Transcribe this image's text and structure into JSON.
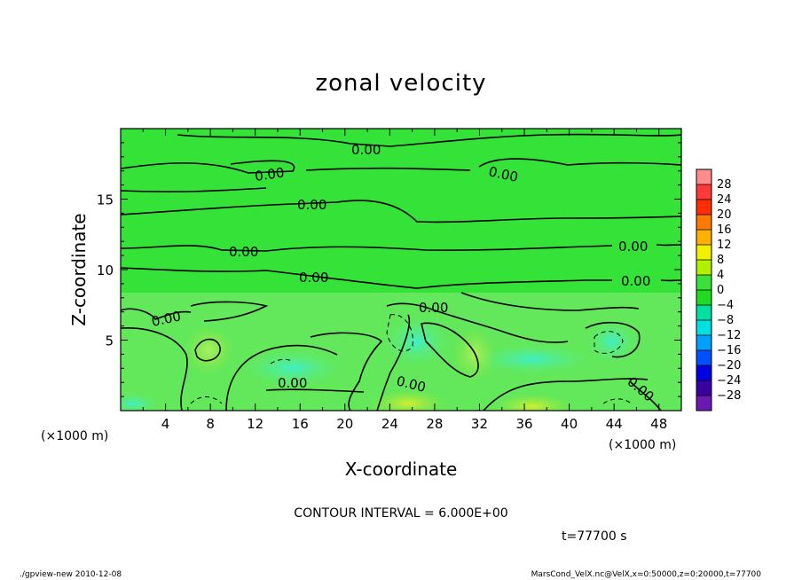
{
  "chart_data": {
    "type": "heatmap",
    "title": "zonal velocity",
    "xlabel": "X-coordinate",
    "ylabel": "Z-coordinate",
    "x_unit": "(×1000 m)",
    "y_unit": "(×1000 m)",
    "xlim": [
      0,
      50
    ],
    "ylim": [
      0,
      20
    ],
    "x_ticks": [
      4,
      8,
      12,
      16,
      20,
      24,
      28,
      32,
      36,
      40,
      44,
      48
    ],
    "y_ticks": [
      5,
      10,
      15
    ],
    "colorbar_levels": [
      28,
      24,
      20,
      16,
      12,
      8,
      4,
      0,
      -4,
      -8,
      -12,
      -16,
      -20,
      -24,
      -28
    ],
    "colorbar_colors": [
      "#ff8c8c",
      "#ff3a3a",
      "#ff2d00",
      "#ff7a00",
      "#ffb000",
      "#f0f000",
      "#b0f000",
      "#3ce03c",
      "#20dc20",
      "#00e0a0",
      "#00e0e0",
      "#00a0ff",
      "#0050ff",
      "#0000e0",
      "#3a00a0",
      "#6a1ab0"
    ],
    "contour_interval": "CONTOUR INTERVAL = 6.000E+00",
    "contour_label": "0.00",
    "time_label": "t=77700  s",
    "grid": false,
    "legend": "right colorbar"
  },
  "footer": {
    "left": "./gpview-new   2010-12-08",
    "right": "MarsCond_VelX.nc@VelX,x=0:50000,z=0:20000,t=77700"
  }
}
